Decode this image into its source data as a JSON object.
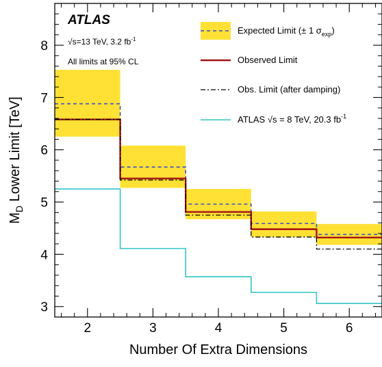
{
  "chart_data": {
    "type": "line",
    "xlabel": "Number Of Extra Dimensions",
    "ylabel": "M",
    "ylabel_sub": "D",
    "ylabel_rest": " Lower Limit [TeV]",
    "xlim": [
      1.5,
      6.5
    ],
    "ylim": [
      2.8,
      8.8
    ],
    "x_ticks": [
      2,
      3,
      4,
      5,
      6
    ],
    "y_ticks": [
      3,
      4,
      5,
      6,
      7,
      8
    ],
    "x_tick_labels": [
      "2",
      "3",
      "4",
      "5",
      "6"
    ],
    "y_tick_labels": [
      "3",
      "4",
      "5",
      "6",
      "7",
      "8"
    ],
    "grid": false,
    "legend_position": "top-right",
    "annotations": {
      "experiment": "ATLAS",
      "energy_lumi": "√s=13 TeV, 3.2 fb",
      "energy_lumi_sup": "-1",
      "cl_note": "All limits at 95% CL"
    },
    "categories": [
      2,
      3,
      4,
      5,
      6
    ],
    "band": {
      "name": "Expected Limit (± 1 σ",
      "name_sub": "exp",
      "name_end": ")",
      "color": "#ffe135",
      "lower": [
        6.25,
        5.27,
        4.67,
        4.33,
        4.18
      ],
      "upper": [
        7.53,
        6.08,
        5.25,
        4.82,
        4.58
      ]
    },
    "series": [
      {
        "name": "Expected Limit (± 1 σexp)",
        "style": "dashed",
        "color": "#3a4fc4",
        "values": [
          6.88,
          5.67,
          4.96,
          4.59,
          4.38
        ]
      },
      {
        "name": "Observed Limit",
        "style": "solid",
        "color": "#a31212",
        "values": [
          6.58,
          5.45,
          4.81,
          4.48,
          4.32
        ]
      },
      {
        "name": "Obs. Limit (after damping)",
        "style": "dashdot",
        "color": "#000000",
        "values": [
          6.58,
          5.42,
          4.75,
          4.33,
          4.1
        ]
      },
      {
        "name": "ATLAS √s = 8 TeV, 20.3 fb-1",
        "style": "solid",
        "color": "#33c4c8",
        "values": [
          5.25,
          4.11,
          3.57,
          3.27,
          3.06
        ]
      }
    ],
    "legend": [
      {
        "label": "Expected Limit (± 1 σ",
        "sub": "exp",
        "end": ")"
      },
      {
        "label": "Observed Limit"
      },
      {
        "label": "Obs. Limit (after damping)"
      },
      {
        "label": "ATLAS  √s = 8 TeV, 20.3 fb",
        "sup": "-1"
      }
    ]
  }
}
